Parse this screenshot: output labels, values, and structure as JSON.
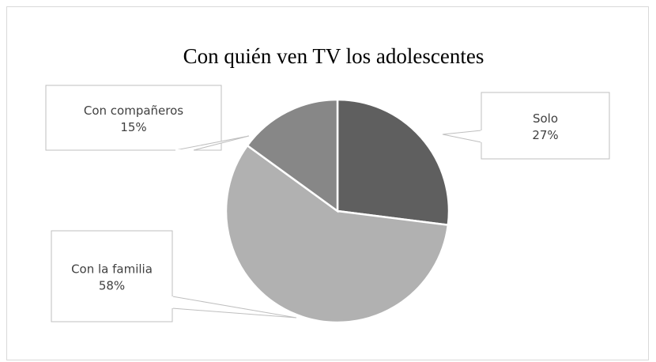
{
  "chart_data": {
    "type": "pie",
    "title": "Con quién ven TV los adolescentes",
    "categories": [
      "Solo",
      "Con la familia",
      "Con compañeros"
    ],
    "values": [
      27,
      58,
      15
    ],
    "value_labels": [
      "27%",
      "58%",
      "15%"
    ],
    "colors": [
      "#5f5f5f",
      "#b1b1b1",
      "#878787"
    ],
    "start_angle_deg": 0,
    "direction": "clockwise",
    "legend": "none",
    "data_labels": "callouts"
  }
}
